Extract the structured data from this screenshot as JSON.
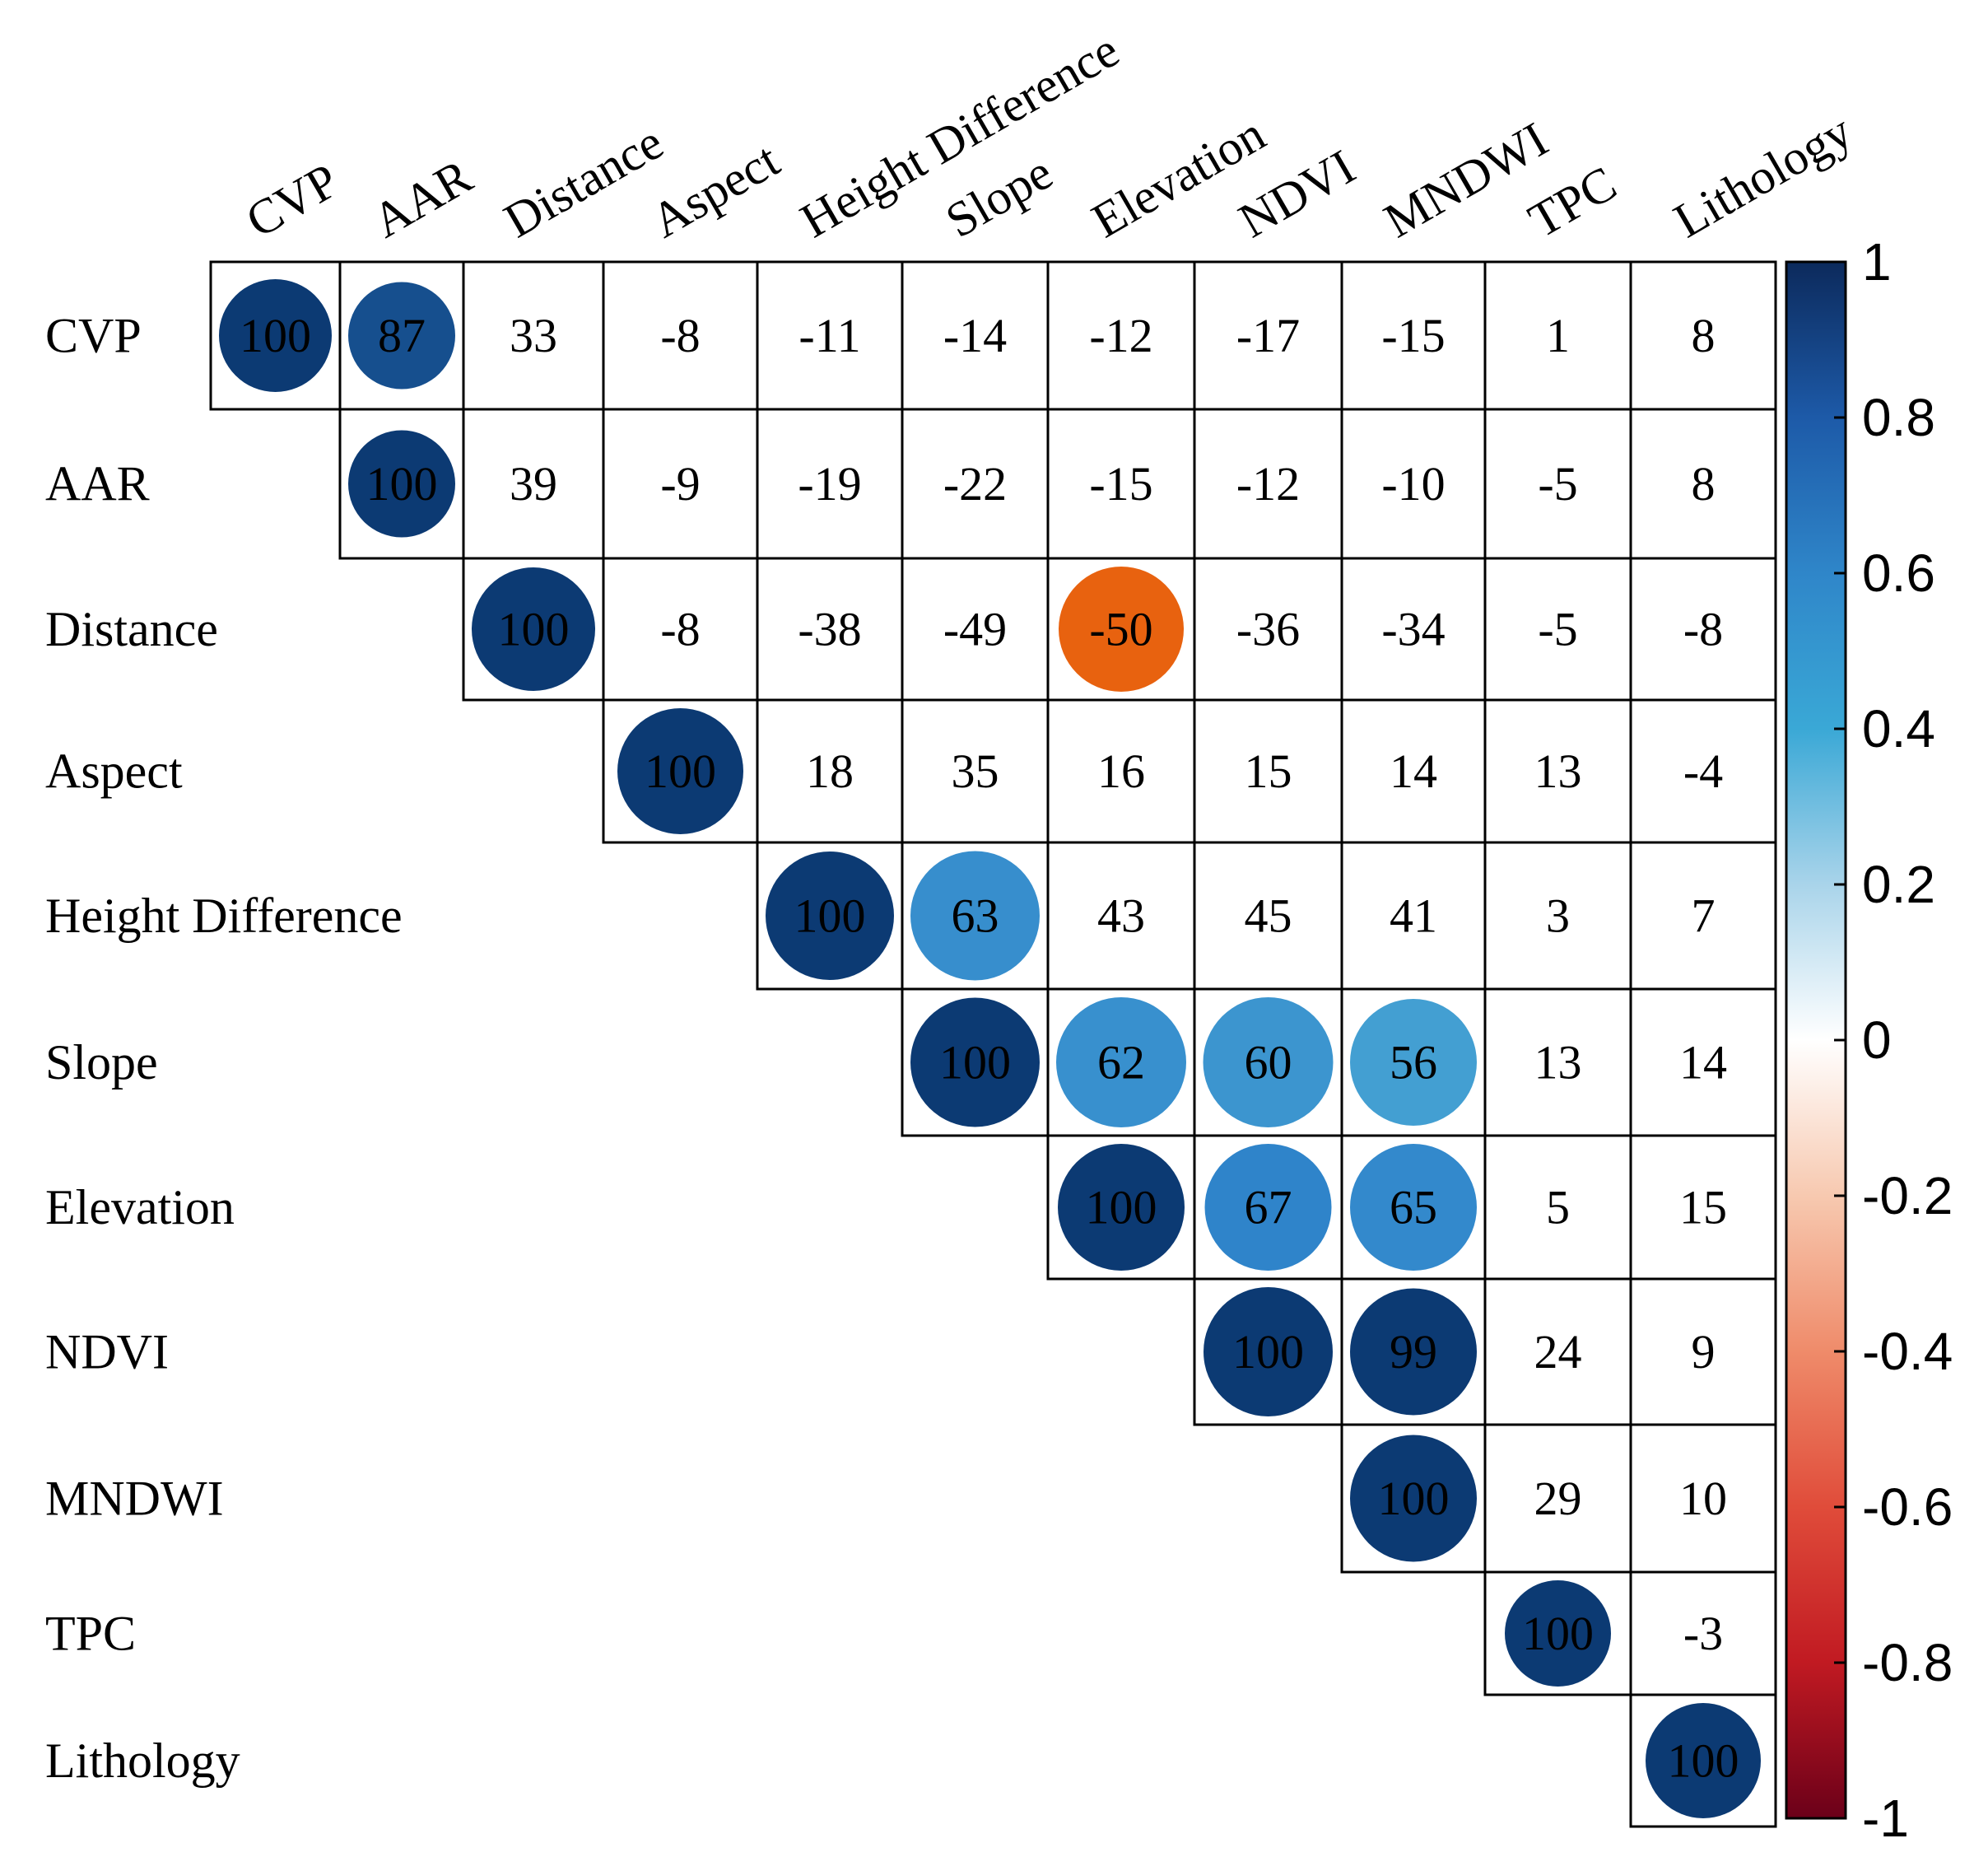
{
  "chart_data": {
    "type": "heatmap",
    "variables": [
      "CVP",
      "AAR",
      "Distance",
      "Aspect",
      "Height  Difference",
      "Slope",
      "Elevation",
      "NDVI",
      "MNDWI",
      "TPC",
      "Lithology"
    ],
    "matrix": [
      [
        100,
        87,
        33,
        -8,
        -11,
        -14,
        -12,
        -17,
        -15,
        1,
        8
      ],
      [
        null,
        100,
        39,
        -9,
        -19,
        -22,
        -15,
        -12,
        -10,
        -5,
        8
      ],
      [
        null,
        null,
        100,
        -8,
        -38,
        -49,
        -50,
        -36,
        -34,
        -5,
        -8
      ],
      [
        null,
        null,
        null,
        100,
        18,
        35,
        16,
        15,
        14,
        13,
        -4
      ],
      [
        null,
        null,
        null,
        null,
        100,
        63,
        43,
        45,
        41,
        3,
        7
      ],
      [
        null,
        null,
        null,
        null,
        null,
        100,
        62,
        60,
        56,
        13,
        14
      ],
      [
        null,
        null,
        null,
        null,
        null,
        null,
        100,
        67,
        65,
        5,
        15
      ],
      [
        null,
        null,
        null,
        null,
        null,
        null,
        null,
        100,
        99,
        24,
        9
      ],
      [
        null,
        null,
        null,
        null,
        null,
        null,
        null,
        null,
        100,
        29,
        10
      ],
      [
        null,
        null,
        null,
        null,
        null,
        null,
        null,
        null,
        null,
        100,
        -3
      ],
      [
        null,
        null,
        null,
        null,
        null,
        null,
        null,
        null,
        null,
        null,
        100
      ]
    ],
    "significant": [
      [
        true,
        true,
        false,
        false,
        false,
        false,
        false,
        false,
        false,
        false,
        false
      ],
      [
        false,
        true,
        false,
        false,
        false,
        false,
        false,
        false,
        false,
        false,
        false
      ],
      [
        false,
        false,
        true,
        false,
        false,
        false,
        true,
        false,
        false,
        false,
        false
      ],
      [
        false,
        false,
        false,
        true,
        false,
        false,
        false,
        false,
        false,
        false,
        false
      ],
      [
        false,
        false,
        false,
        false,
        true,
        true,
        false,
        false,
        false,
        false,
        false
      ],
      [
        false,
        false,
        false,
        false,
        false,
        true,
        true,
        true,
        true,
        false,
        false
      ],
      [
        false,
        false,
        false,
        false,
        false,
        false,
        true,
        true,
        true,
        false,
        false
      ],
      [
        false,
        false,
        false,
        false,
        false,
        false,
        false,
        true,
        true,
        false,
        false
      ],
      [
        false,
        false,
        false,
        false,
        false,
        false,
        false,
        false,
        true,
        false,
        false
      ],
      [
        false,
        false,
        false,
        false,
        false,
        false,
        false,
        false,
        false,
        true,
        false
      ],
      [
        false,
        false,
        false,
        false,
        false,
        false,
        false,
        false,
        false,
        false,
        true
      ]
    ],
    "colorbar": {
      "min": -1,
      "max": 1,
      "ticks": [
        "1",
        "0.8",
        "0.6",
        "0.4",
        "0.2",
        "0",
        "-0.2",
        "-0.4",
        "-0.6",
        "-0.8",
        "-1"
      ]
    },
    "colors": {
      "negative_strong": "#67001f",
      "negative_mid": "#e35a3a",
      "negative_label_circle": "#e8620f",
      "neutral": "#ffffff",
      "positive_light": "#4eaed6",
      "positive_mid": "#2a7cc8",
      "positive_strong": "#0c3a73",
      "grid_line": "#000000"
    }
  }
}
